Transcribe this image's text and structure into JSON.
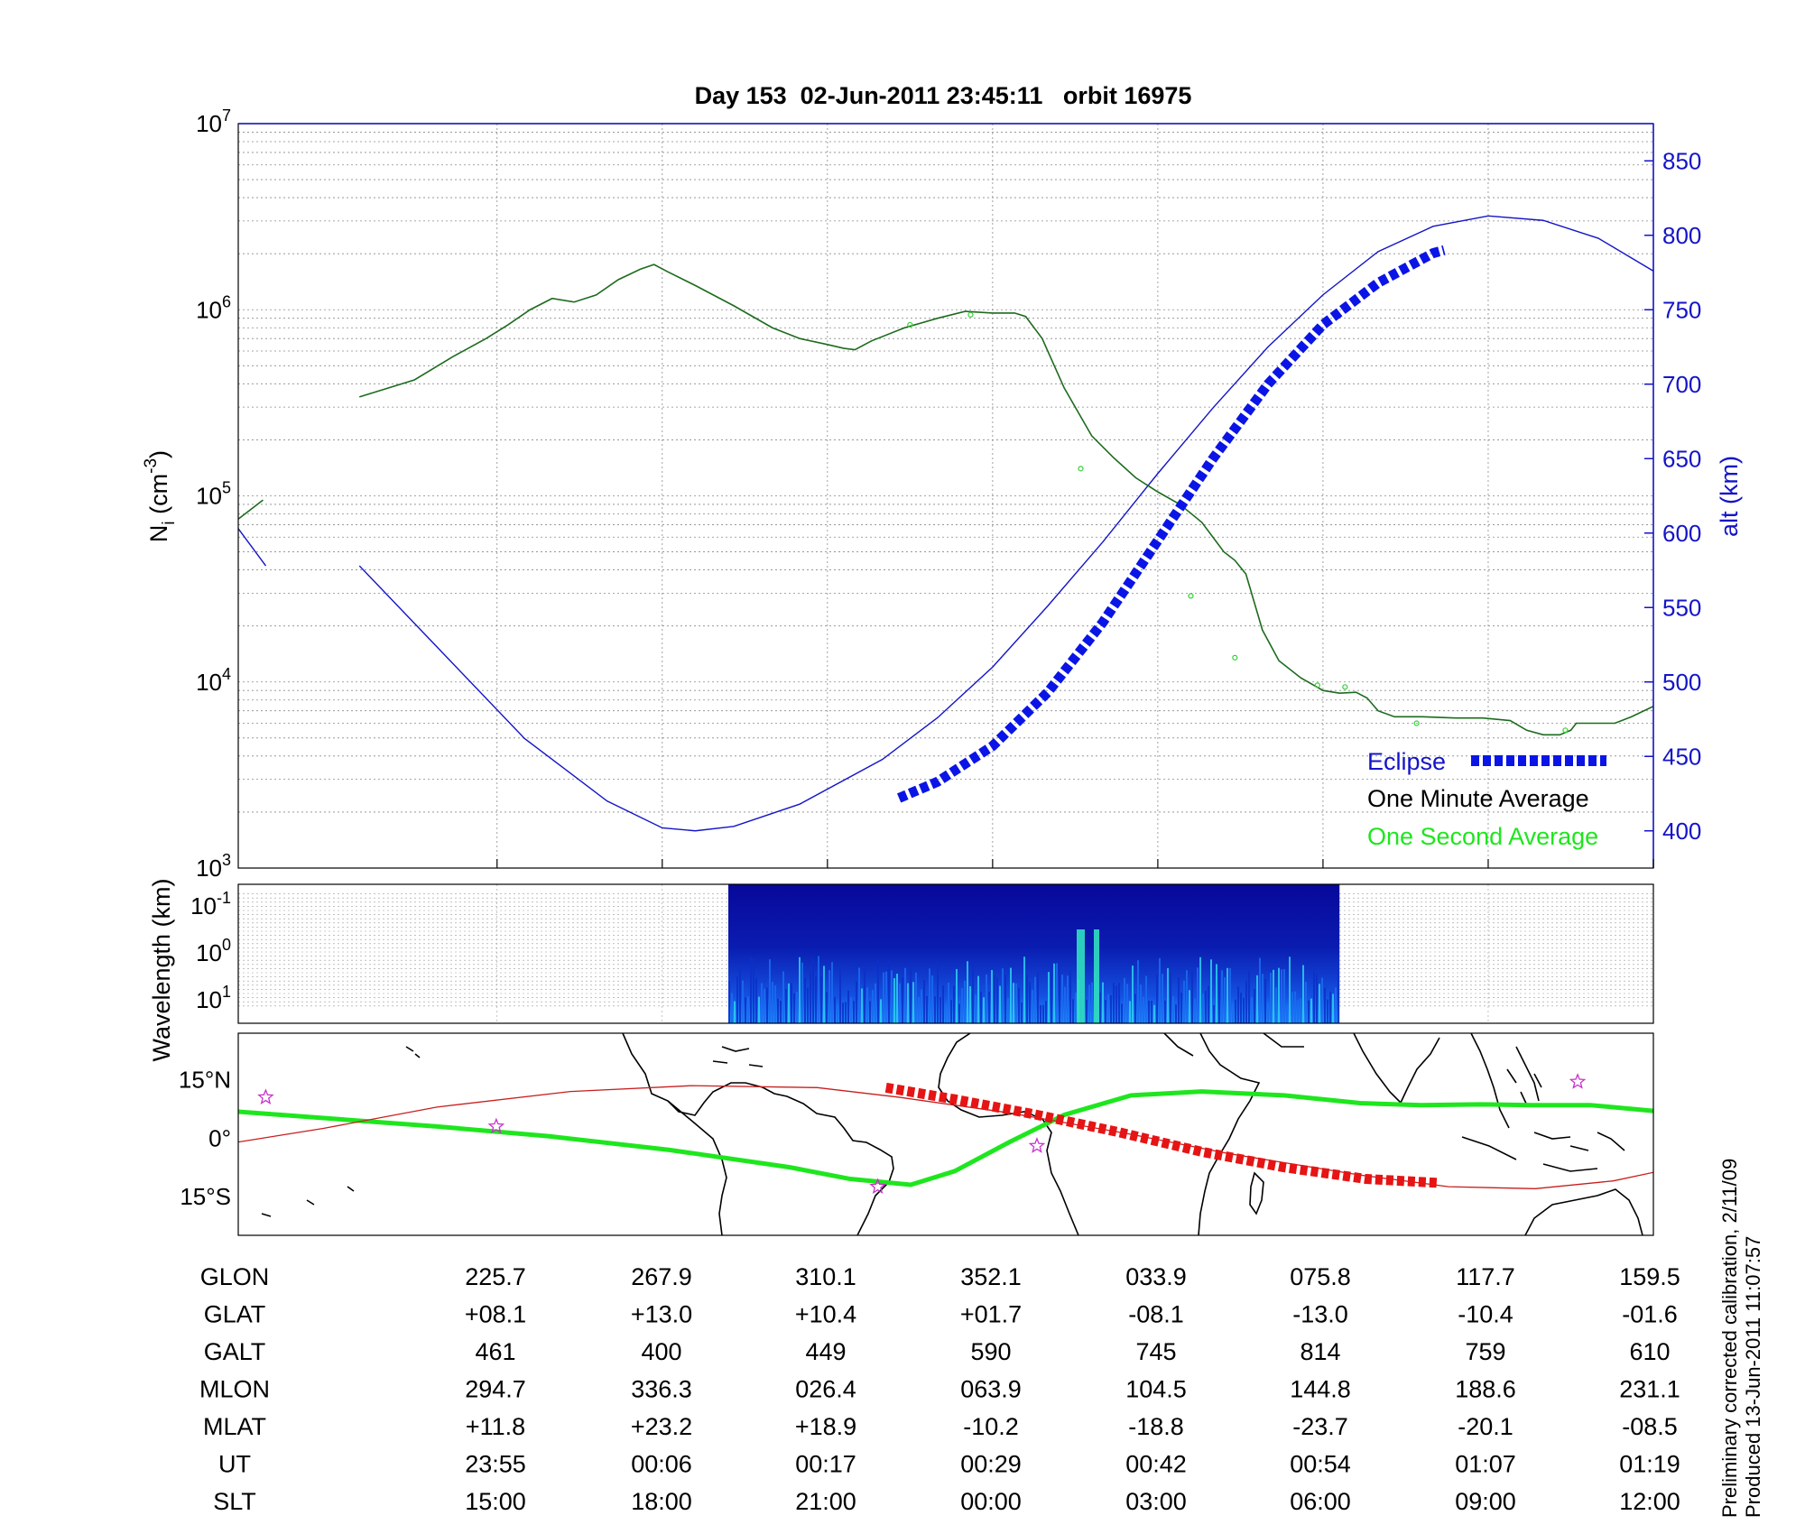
{
  "title": "Day 153  02-Jun-2011 23:45:11   orbit 16975",
  "side_note": {
    "line1": "Preliminary corrected calibration, 2/11/09",
    "line2": "Produced 13-Jun-2011 11:07:57"
  },
  "colors": {
    "ni": "#1d6b1d",
    "alt": "#1414c8",
    "eclipse": "#0a14e6",
    "track_green": "#1ee61e",
    "track_red": "#c81e1e",
    "track_eclipse": "#e61414",
    "star": "#c832c8",
    "spectrum_bg": "#0a0a9a"
  },
  "legend": {
    "eclipse": "Eclipse",
    "one_minute": "One Minute Average",
    "one_second": "One Second Average",
    "placement": "lower-right"
  },
  "table": {
    "rows": [
      {
        "label": "GLON",
        "values": [
          "225.7",
          "267.9",
          "310.1",
          "352.1",
          "033.9",
          "075.8",
          "117.7",
          "159.5"
        ]
      },
      {
        "label": "GLAT",
        "values": [
          "+08.1",
          "+13.0",
          "+10.4",
          "+01.7",
          "-08.1",
          "-13.0",
          "-10.4",
          "-01.6"
        ]
      },
      {
        "label": "GALT",
        "values": [
          "461",
          "400",
          "449",
          "590",
          "745",
          "814",
          "759",
          "610"
        ]
      },
      {
        "label": "MLON",
        "values": [
          "294.7",
          "336.3",
          "026.4",
          "063.9",
          "104.5",
          "144.8",
          "188.6",
          "231.1"
        ]
      },
      {
        "label": "MLAT",
        "values": [
          "+11.8",
          "+23.2",
          "+18.9",
          "-10.2",
          "-18.8",
          "-23.7",
          "-20.1",
          "-08.5"
        ]
      },
      {
        "label": "UT",
        "values": [
          "23:55",
          "00:06",
          "00:17",
          "00:29",
          "00:42",
          "00:54",
          "01:07",
          "01:19"
        ]
      },
      {
        "label": "SLT",
        "values": [
          "15:00",
          "18:00",
          "21:00",
          "00:00",
          "03:00",
          "06:00",
          "09:00",
          "12:00"
        ]
      }
    ]
  },
  "chart_data": [
    {
      "type": "line",
      "panel": "density",
      "ylabel": "N_i (cm^-3)",
      "ylabel_right": "alt (km)",
      "yscale": "log",
      "ylim": [
        1000,
        10000000
      ],
      "y_ticks": [
        {
          "base": "10",
          "exp": "3"
        },
        {
          "base": "10",
          "exp": "4"
        },
        {
          "base": "10",
          "exp": "5"
        },
        {
          "base": "10",
          "exp": "6"
        },
        {
          "base": "10",
          "exp": "7"
        }
      ],
      "y2lim": [
        375,
        875
      ],
      "y2_ticks": [
        "400",
        "450",
        "500",
        "550",
        "600",
        "650",
        "700",
        "750",
        "800",
        "850"
      ],
      "x_ticks_slt": [
        15,
        18,
        21,
        24,
        27,
        30,
        33,
        36
      ],
      "xlim_slt": [
        10.3,
        36.0
      ],
      "grid": true,
      "series": [
        {
          "name": "One Minute Average",
          "segments": [
            [
              [
                10.3,
                75000
              ],
              [
                10.75,
                95000
              ]
            ],
            [
              [
                12.5,
                340000
              ],
              [
                13.5,
                420000
              ],
              [
                14.2,
                560000
              ],
              [
                14.8,
                700000
              ],
              [
                15.2,
                830000
              ],
              [
                15.6,
                1000000
              ],
              [
                16.0,
                1150000
              ],
              [
                16.4,
                1100000
              ],
              [
                16.8,
                1200000
              ],
              [
                17.2,
                1450000
              ],
              [
                17.6,
                1650000
              ],
              [
                17.85,
                1750000
              ],
              [
                18.1,
                1600000
              ],
              [
                18.6,
                1350000
              ],
              [
                19.3,
                1050000
              ],
              [
                20.0,
                800000
              ],
              [
                20.5,
                700000
              ],
              [
                21.0,
                650000
              ],
              [
                21.3,
                620000
              ],
              [
                21.5,
                610000
              ],
              [
                21.8,
                680000
              ],
              [
                22.4,
                800000
              ],
              [
                23.0,
                900000
              ],
              [
                23.5,
                980000
              ],
              [
                24.0,
                960000
              ],
              [
                24.4,
                960000
              ],
              [
                24.6,
                920000
              ],
              [
                24.9,
                700000
              ],
              [
                25.3,
                380000
              ],
              [
                25.8,
                210000
              ],
              [
                26.2,
                160000
              ],
              [
                26.6,
                125000
              ],
              [
                27.0,
                105000
              ],
              [
                27.4,
                90000
              ],
              [
                27.8,
                72000
              ],
              [
                28.0,
                60000
              ],
              [
                28.2,
                50000
              ],
              [
                28.4,
                45000
              ],
              [
                28.6,
                38000
              ],
              [
                28.9,
                19000
              ],
              [
                29.2,
                13000
              ],
              [
                29.6,
                10500
              ],
              [
                30.0,
                9000
              ],
              [
                30.3,
                8700
              ],
              [
                30.6,
                8800
              ],
              [
                30.8,
                8200
              ],
              [
                31.0,
                7000
              ],
              [
                31.3,
                6500
              ],
              [
                31.8,
                6500
              ],
              [
                32.4,
                6400
              ],
              [
                32.9,
                6400
              ],
              [
                33.4,
                6200
              ],
              [
                33.7,
                5500
              ],
              [
                34.0,
                5200
              ],
              [
                34.3,
                5200
              ],
              [
                34.5,
                5500
              ],
              [
                34.6,
                6000
              ],
              [
                35.0,
                6000
              ],
              [
                35.3,
                6000
              ],
              [
                35.6,
                6500
              ],
              [
                36.0,
                7400
              ],
              [
                36.4,
                8500
              ],
              [
                36.7,
                9800
              ],
              [
                37.1,
                10500
              ],
              [
                37.4,
                11800
              ],
              [
                37.8,
                13000
              ],
              [
                38.3,
                14800
              ],
              [
                38.8,
                16800
              ],
              [
                39.3,
                18300
              ],
              [
                39.8,
                19600
              ],
              [
                40.3,
                21500
              ],
              [
                40.8,
                23500
              ],
              [
                41.3,
                25000
              ],
              [
                41.8,
                26000
              ],
              [
                42.3,
                27000
              ],
              [
                42.8,
                28000
              ],
              [
                43.3,
                30500
              ],
              [
                43.8,
                34000
              ],
              [
                44.3,
                38000
              ],
              [
                44.8,
                41000
              ],
              [
                45.3,
                44000
              ],
              [
                45.8,
                48000
              ],
              [
                46.3,
                53000
              ],
              [
                46.8,
                58000
              ],
              [
                47.3,
                63000
              ],
              [
                47.7,
                67000
              ],
              [
                48.0,
                72000
              ]
            ]
          ]
        },
        {
          "name": "One Second Average",
          "points": [
            [
              22.5,
              830000
            ],
            [
              23.6,
              940000
            ],
            [
              25.6,
              140000
            ],
            [
              26.7,
              44000
            ],
            [
              27.6,
              29000
            ],
            [
              28.4,
              13500
            ],
            [
              29.9,
              9600
            ],
            [
              30.4,
              9400
            ],
            [
              31.7,
              6000
            ],
            [
              34.4,
              5500
            ]
          ]
        },
        {
          "name": "alt (km)",
          "segments": [
            [
              [
                10.3,
                603
              ],
              [
                10.8,
                578
              ]
            ],
            [
              [
                12.5,
                578
              ],
              [
                14.0,
                520
              ],
              [
                15.5,
                462
              ],
              [
                17.0,
                420
              ],
              [
                18.0,
                402
              ],
              [
                18.6,
                400
              ],
              [
                19.3,
                403
              ],
              [
                20.5,
                418
              ],
              [
                22.0,
                448
              ],
              [
                23.0,
                476
              ],
              [
                24.0,
                510
              ],
              [
                25.0,
                551
              ],
              [
                26.0,
                594
              ],
              [
                27.0,
                640
              ],
              [
                28.0,
                684
              ],
              [
                29.0,
                725
              ],
              [
                30.0,
                760
              ],
              [
                31.0,
                789
              ],
              [
                32.0,
                806
              ],
              [
                33.0,
                813
              ],
              [
                34.0,
                810
              ],
              [
                35.0,
                798
              ],
              [
                36.0,
                776
              ],
              [
                37.0,
                745
              ],
              [
                38.0,
                706
              ],
              [
                39.0,
                660
              ],
              [
                40.0,
                612
              ],
              [
                40.3,
                606
              ]
            ]
          ]
        },
        {
          "name": "Eclipse",
          "x_range_slt": [
            22.3,
            32.2
          ],
          "points": [
            [
              22.3,
              422
            ],
            [
              23.0,
              433
            ],
            [
              24.0,
              457
            ],
            [
              25.0,
              493
            ],
            [
              26.0,
              540
            ],
            [
              27.0,
              595
            ],
            [
              28.0,
              650
            ],
            [
              29.0,
              700
            ],
            [
              30.0,
              740
            ],
            [
              31.0,
              768
            ],
            [
              32.0,
              788
            ],
            [
              32.2,
              790
            ]
          ]
        }
      ]
    },
    {
      "type": "heatmap",
      "panel": "spectrogram",
      "ylabel": "Wavelength (km)",
      "yscale": "log",
      "y_ticks": [
        {
          "base": "10",
          "exp": "-1"
        },
        {
          "base": "10",
          "exp": "0"
        },
        {
          "base": "10",
          "exp": "1"
        }
      ],
      "x_range_slt": [
        19.2,
        30.3
      ],
      "colormap": "jet",
      "grid": true
    },
    {
      "type": "line",
      "panel": "ground-track",
      "y_ticks": [
        "15°N",
        "0°",
        "15°S"
      ],
      "ylim": [
        -25,
        27
      ],
      "xlim_glon": [
        189.5,
        447.3
      ],
      "series": [
        {
          "name": "satellite track (GLON, GLAT)",
          "color_key": "track_green",
          "points": [
            [
              189.5,
              6.8
            ],
            [
              225.7,
              3.0
            ],
            [
              246.0,
              0.5
            ],
            [
              267.9,
              -3.0
            ],
            [
              290.0,
              -7.5
            ],
            [
              301.0,
              -10.5
            ],
            [
              312.0,
              -12.0
            ],
            [
              320.0,
              -8.5
            ],
            [
              330.0,
              -1.0
            ],
            [
              340.0,
              6.0
            ],
            [
              352.1,
              11.0
            ],
            [
              365.0,
              12.0
            ],
            [
              380.0,
              11.0
            ],
            [
              393.9,
              9.0
            ],
            [
              405.0,
              8.5
            ],
            [
              415.8,
              8.7
            ],
            [
              425.0,
              8.5
            ],
            [
              435.8,
              8.5
            ],
            [
              447.3,
              7.0
            ]
          ]
        },
        {
          "name": "magnetic equator-like trace",
          "color_key": "track_red",
          "points": [
            [
              189.5,
              -1.0
            ],
            [
              205.0,
              2.5
            ],
            [
              225.7,
              8.0
            ],
            [
              250.0,
              12.0
            ],
            [
              272.0,
              13.5
            ],
            [
              295.0,
              13.0
            ],
            [
              310.0,
              10.5
            ],
            [
              330.0,
              6.5
            ],
            [
              352.1,
              1.0
            ],
            [
              370.0,
              -4.0
            ],
            [
              393.9,
              -9.5
            ],
            [
              410.0,
              -12.5
            ],
            [
              425.8,
              -13.0
            ],
            [
              440.0,
              -11.0
            ],
            [
              460.0,
              -5.0
            ],
            [
              475.8,
              -1.0
            ],
            [
              497.7,
              5.0
            ]
          ]
        },
        {
          "name": "eclipse segment",
          "color_key": "track_eclipse",
          "points": [
            [
              307.5,
              13.0
            ],
            [
              320.0,
              10.0
            ],
            [
              335.0,
              6.0
            ],
            [
              350.0,
              1.5
            ],
            [
              365.0,
              -3.5
            ],
            [
              380.0,
              -7.5
            ],
            [
              395.0,
              -10.5
            ],
            [
              408.0,
              -11.5
            ]
          ]
        },
        {
          "name": "markers",
          "color_key": "star",
          "points": [
            [
              194.5,
              10.5
            ],
            [
              236.5,
              3.0
            ],
            [
              306.0,
              -12.5
            ],
            [
              335.0,
              -2.0
            ],
            [
              433.5,
              14.5
            ]
          ]
        }
      ]
    }
  ]
}
